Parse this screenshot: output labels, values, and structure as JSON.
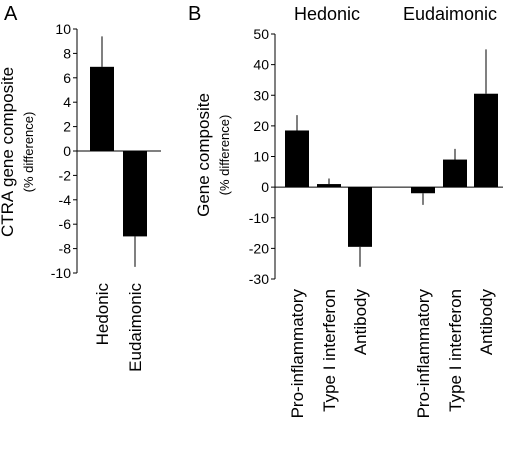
{
  "chart_data": [
    {
      "type": "bar",
      "panel_label": "A",
      "ylabel": "CTRA gene composite",
      "ylabel_sub": "(% difference)",
      "ylim": [
        -10,
        10
      ],
      "yticks": [
        "10",
        "8",
        "6",
        "4",
        "2",
        "0",
        "-2",
        "-4",
        "-6",
        "-8",
        "-10"
      ],
      "categories": [
        "Hedonic",
        "Eudaimonic"
      ],
      "values": [
        6.9,
        -7.0
      ],
      "errors": [
        2.5,
        2.5
      ],
      "color": "#000000"
    },
    {
      "type": "bar",
      "panel_label": "B",
      "ylabel": "Gene composite",
      "ylabel_sub": "(% difference)",
      "ylim": [
        -30,
        50
      ],
      "yticks": [
        "50",
        "40",
        "30",
        "20",
        "10",
        "0",
        "-10",
        "-20",
        "-30"
      ],
      "groups": [
        "Hedonic",
        "Eudaimonic"
      ],
      "categories": [
        "Pro-inflammatory",
        "Type I interferon",
        "Antibody",
        "Pro-inflammatory",
        "Type I interferon",
        "Antibody"
      ],
      "values": [
        18.5,
        1.0,
        -19.5,
        -2.0,
        9.0,
        30.5
      ],
      "errors": [
        5.0,
        1.8,
        6.5,
        3.8,
        3.5,
        14.5
      ],
      "color": "#000000"
    }
  ]
}
